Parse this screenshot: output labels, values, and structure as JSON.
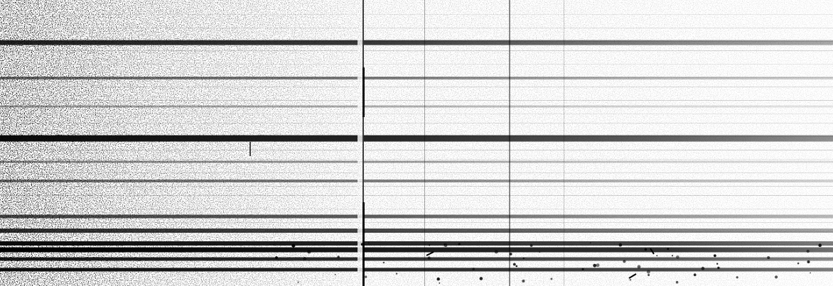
{
  "image": {
    "description_free": true,
    "ink": "#000000",
    "paper": "#ffffff",
    "bands": [
      {
        "strength": 0.85,
        "fade": 0.55
      },
      {
        "strength": 0.55,
        "fade": 0.45
      },
      {
        "strength": 0.35,
        "fade": 0.4
      },
      {
        "strength": 0.95,
        "fade": 0.65
      },
      {
        "strength": 0.45,
        "fade": 0.4
      },
      {
        "strength": 0.55,
        "fade": 0.45
      },
      {
        "strength": 0.7,
        "fade": 0.55
      },
      {
        "strength": 0.8,
        "fade": 0.6
      },
      {
        "strength": 0.95,
        "fade": 0.75
      },
      {
        "strength": 1.0,
        "fade": 0.8
      },
      {
        "strength": 0.9,
        "fade": 0.7
      },
      {
        "strength": 0.95,
        "fade": 0.75
      }
    ]
  }
}
